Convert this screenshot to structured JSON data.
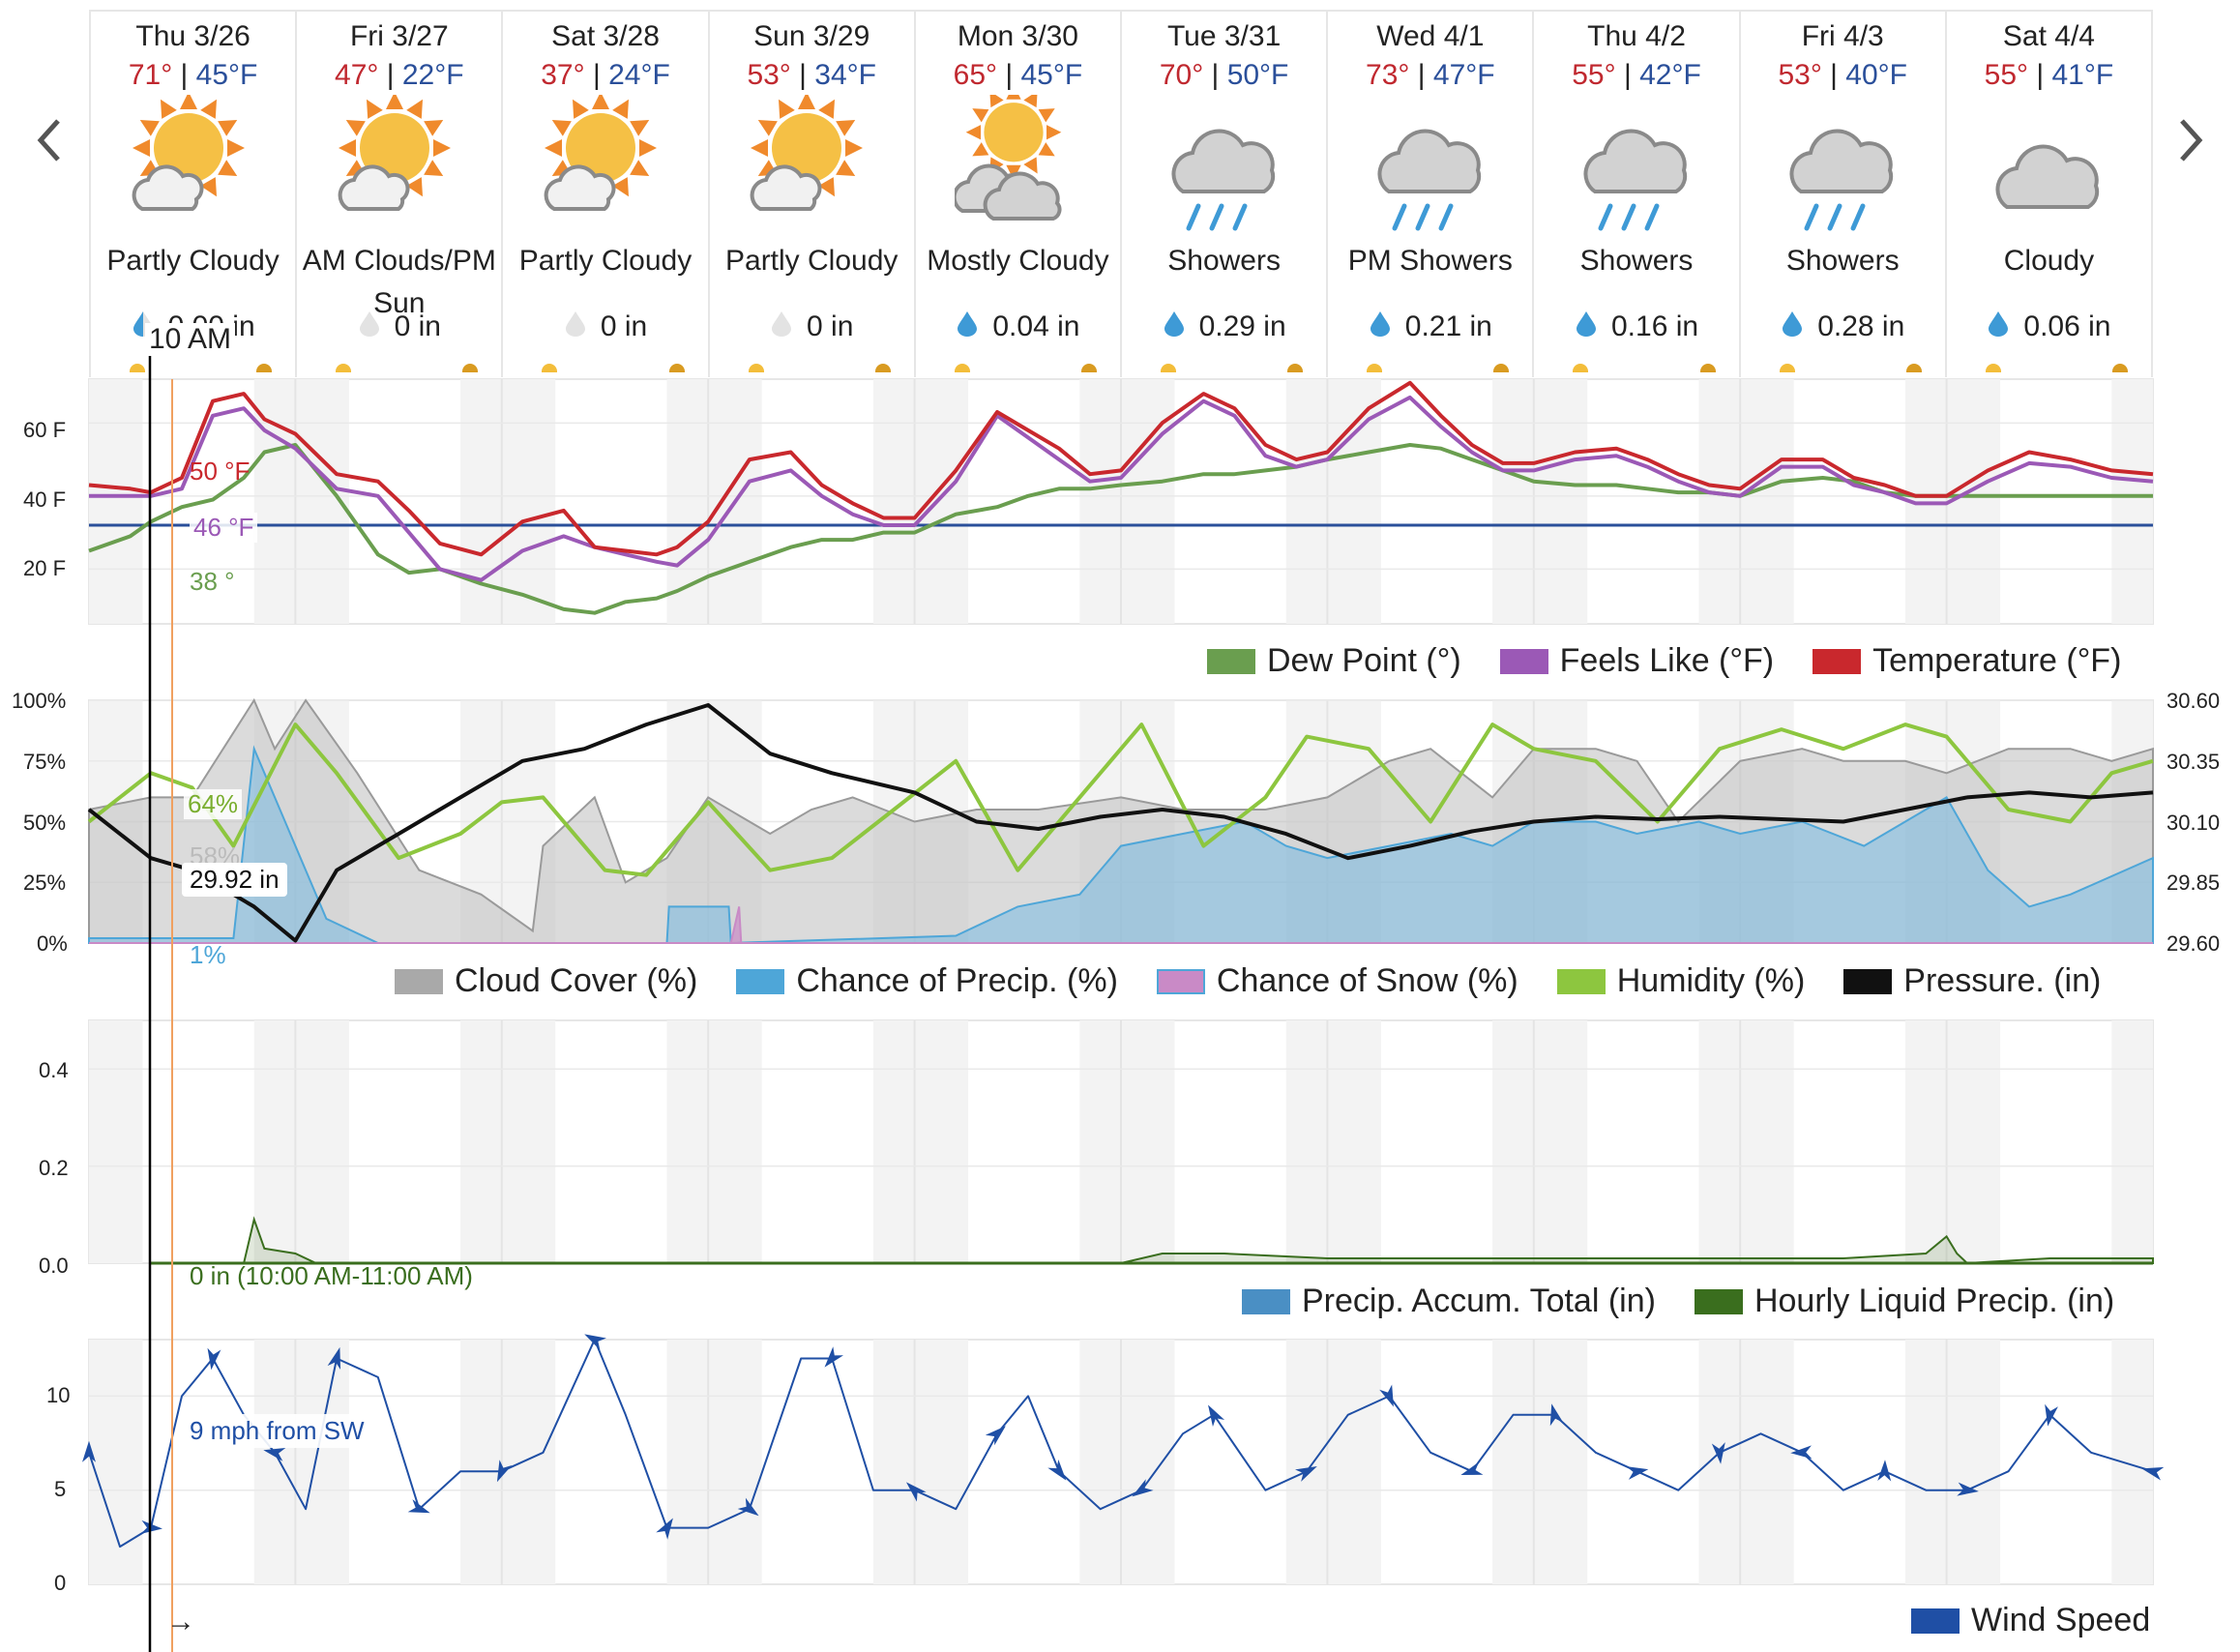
{
  "days": [
    {
      "name": "Thu 3/26",
      "hi": "71°",
      "lo": "45°F",
      "icon": "partly-cloudy-icon",
      "condition": "Partly Cloudy",
      "precip": "0.00 in",
      "drop": "partial"
    },
    {
      "name": "Fri 3/27",
      "hi": "47°",
      "lo": "22°F",
      "icon": "partly-cloudy-icon",
      "condition": "AM Clouds/PM Sun",
      "precip": "0 in",
      "drop": "none"
    },
    {
      "name": "Sat 3/28",
      "hi": "37°",
      "lo": "24°F",
      "icon": "partly-cloudy-icon",
      "condition": "Partly Cloudy",
      "precip": "0 in",
      "drop": "none"
    },
    {
      "name": "Sun 3/29",
      "hi": "53°",
      "lo": "34°F",
      "icon": "partly-cloudy-icon",
      "condition": "Partly Cloudy",
      "precip": "0 in",
      "drop": "none"
    },
    {
      "name": "Mon 3/30",
      "hi": "65°",
      "lo": "45°F",
      "icon": "mostly-cloudy-icon",
      "condition": "Mostly Cloudy",
      "precip": "0.04 in",
      "drop": "full"
    },
    {
      "name": "Tue 3/31",
      "hi": "70°",
      "lo": "50°F",
      "icon": "showers-icon",
      "condition": "Showers",
      "precip": "0.29 in",
      "drop": "full"
    },
    {
      "name": "Wed 4/1",
      "hi": "73°",
      "lo": "47°F",
      "icon": "showers-icon",
      "condition": "PM Showers",
      "precip": "0.21 in",
      "drop": "full"
    },
    {
      "name": "Thu 4/2",
      "hi": "55°",
      "lo": "42°F",
      "icon": "showers-icon",
      "condition": "Showers",
      "precip": "0.16 in",
      "drop": "full"
    },
    {
      "name": "Fri 4/3",
      "hi": "53°",
      "lo": "40°F",
      "icon": "showers-icon",
      "condition": "Showers",
      "precip": "0.28 in",
      "drop": "full"
    },
    {
      "name": "Sat 4/4",
      "hi": "55°",
      "lo": "41°F",
      "icon": "cloudy-icon",
      "condition": "Cloudy",
      "precip": "0.06 in",
      "drop": "full"
    }
  ],
  "cursor": {
    "time_label": "10 AM",
    "temp_label": "50 °F",
    "feels_label": "46 °F",
    "dew_label": "38 °",
    "humidity_label": "64%",
    "cloud_label": "58%",
    "pressure_label": "29.92 in",
    "precip_chance_label": "1%",
    "precip_label": "0 in (10:00 AM-11:00 AM)",
    "wind_label": "9 mph from SW",
    "arrow_glyph": "→"
  },
  "colors": {
    "dew": "#6a9e4f",
    "feels": "#9b59b6",
    "temp": "#c9282d",
    "freeze": "#2a4f9a",
    "cloud": "#a9a9a9",
    "precip": "#4ea6d8",
    "snow": "#c98ac6",
    "humidity": "#8dc63f",
    "pressure": "#111111",
    "accum": "#4a8fc4",
    "hourly": "#3a6e1e",
    "wind": "#1f4fa5"
  },
  "legends": {
    "temp": [
      "Dew Point (°)",
      "Feels Like (°F)",
      "Temperature (°F)"
    ],
    "sky": [
      "Cloud Cover (%)",
      "Chance of Precip. (%)",
      "Chance of Snow (%)",
      "Humidity (%)",
      "Pressure. (in)"
    ],
    "precip": [
      "Precip. Accum. Total (in)",
      "Hourly Liquid Precip. (in)"
    ],
    "wind": [
      "Wind Speed"
    ]
  },
  "axes": {
    "temp_y": [
      "60 F",
      "40 F",
      "20 F"
    ],
    "pct_y": [
      "100%",
      "75%",
      "50%",
      "25%",
      "0%"
    ],
    "pressure_y": [
      "30.60",
      "30.35",
      "30.10",
      "29.85",
      "29.60"
    ],
    "precip_y": [
      "0.4",
      "0.2",
      "0.0"
    ],
    "wind_y": [
      "10",
      "5",
      "0"
    ]
  },
  "chart_data": [
    {
      "type": "line",
      "title": "",
      "x_unit": "day index (0 = Thu 3/26 00:00, 10 days)",
      "ylim": [
        5,
        72
      ],
      "freezing_line": 32,
      "series": [
        {
          "name": "Temperature (°F)",
          "x": [
            0,
            0.2,
            0.3,
            0.45,
            0.6,
            0.75,
            0.85,
            1.0,
            1.2,
            1.4,
            1.55,
            1.7,
            1.9,
            2.1,
            2.3,
            2.45,
            2.6,
            2.75,
            2.85,
            3.0,
            3.2,
            3.4,
            3.55,
            3.7,
            3.85,
            4.0,
            4.2,
            4.4,
            4.55,
            4.7,
            4.85,
            5.0,
            5.2,
            5.4,
            5.55,
            5.7,
            5.85,
            6.0,
            6.2,
            6.4,
            6.55,
            6.7,
            6.85,
            7.0,
            7.2,
            7.4,
            7.55,
            7.7,
            7.85,
            8.0,
            8.2,
            8.4,
            8.55,
            8.7,
            8.85,
            9.0,
            9.2,
            9.4,
            9.6,
            9.8,
            10.0
          ],
          "y": [
            43,
            42,
            41,
            45,
            66,
            68,
            61,
            57,
            46,
            44,
            36,
            27,
            24,
            33,
            36,
            26,
            25,
            24,
            26,
            33,
            50,
            52,
            43,
            38,
            34,
            34,
            47,
            63,
            58,
            53,
            46,
            47,
            60,
            68,
            64,
            54,
            50,
            52,
            64,
            71,
            62,
            54,
            49,
            49,
            52,
            53,
            50,
            46,
            43,
            42,
            50,
            50,
            45,
            43,
            40,
            40,
            47,
            52,
            50,
            47,
            46
          ]
        },
        {
          "name": "Feels Like (°F)",
          "x": [
            0,
            0.2,
            0.3,
            0.45,
            0.6,
            0.75,
            0.85,
            1.0,
            1.2,
            1.4,
            1.55,
            1.7,
            1.9,
            2.1,
            2.3,
            2.45,
            2.6,
            2.75,
            2.85,
            3.0,
            3.2,
            3.4,
            3.55,
            3.7,
            3.85,
            4.0,
            4.2,
            4.4,
            4.55,
            4.7,
            4.85,
            5.0,
            5.2,
            5.4,
            5.55,
            5.7,
            5.85,
            6.0,
            6.2,
            6.4,
            6.55,
            6.7,
            6.85,
            7.0,
            7.2,
            7.4,
            7.55,
            7.7,
            7.85,
            8.0,
            8.2,
            8.4,
            8.55,
            8.7,
            8.85,
            9.0,
            9.2,
            9.4,
            9.6,
            9.8,
            10.0
          ],
          "y": [
            40,
            40,
            40,
            42,
            62,
            64,
            58,
            53,
            42,
            40,
            30,
            20,
            17,
            25,
            29,
            26,
            24,
            22,
            21,
            28,
            44,
            47,
            40,
            35,
            32,
            32,
            44,
            62,
            56,
            50,
            44,
            45,
            57,
            66,
            62,
            51,
            48,
            50,
            61,
            67,
            59,
            52,
            47,
            47,
            50,
            51,
            48,
            44,
            41,
            40,
            48,
            48,
            43,
            41,
            38,
            38,
            44,
            49,
            48,
            45,
            44
          ]
        },
        {
          "name": "Dew Point (°)",
          "x": [
            0,
            0.2,
            0.3,
            0.45,
            0.6,
            0.75,
            0.85,
            1.0,
            1.2,
            1.4,
            1.55,
            1.7,
            1.9,
            2.1,
            2.3,
            2.45,
            2.6,
            2.75,
            2.85,
            3.0,
            3.2,
            3.4,
            3.55,
            3.7,
            3.85,
            4.0,
            4.2,
            4.4,
            4.55,
            4.7,
            4.85,
            5.0,
            5.2,
            5.4,
            5.55,
            5.7,
            5.85,
            6.0,
            6.2,
            6.4,
            6.55,
            6.7,
            6.85,
            7.0,
            7.2,
            7.4,
            7.55,
            7.7,
            7.85,
            8.0,
            8.2,
            8.4,
            8.55,
            8.7,
            8.85,
            9.0,
            9.2,
            9.4,
            9.6,
            9.8,
            10.0
          ],
          "y": [
            25,
            29,
            33,
            37,
            39,
            45,
            52,
            54,
            40,
            24,
            19,
            20,
            16,
            13,
            9,
            8,
            11,
            12,
            14,
            18,
            22,
            26,
            28,
            28,
            30,
            30,
            35,
            37,
            40,
            42,
            42,
            43,
            44,
            46,
            46,
            47,
            48,
            50,
            52,
            54,
            53,
            50,
            47,
            44,
            43,
            43,
            42,
            41,
            41,
            40,
            44,
            45,
            44,
            41,
            40,
            40,
            40,
            40,
            40,
            40,
            40
          ]
        }
      ]
    },
    {
      "type": "area",
      "title": "",
      "x_unit": "day index (0 = Thu 3/26 00:00, 10 days)",
      "ylim": [
        0,
        100
      ],
      "series": [
        {
          "name": "Cloud Cover (%)",
          "x": [
            0,
            0.3,
            0.5,
            0.8,
            0.9,
            1.05,
            1.3,
            1.6,
            1.9,
            2.15,
            2.2,
            2.45,
            2.6,
            2.8,
            3.0,
            3.3,
            3.5,
            3.7,
            4.0,
            4.3,
            4.6,
            5.0,
            5.3,
            5.7,
            6.0,
            6.3,
            6.5,
            6.8,
            7.0,
            7.3,
            7.5,
            7.7,
            8.0,
            8.3,
            8.5,
            8.8,
            9.0,
            9.3,
            9.6,
            9.8,
            10.0
          ],
          "y": [
            55,
            60,
            60,
            100,
            80,
            100,
            70,
            30,
            20,
            5,
            40,
            60,
            25,
            35,
            60,
            45,
            55,
            60,
            50,
            55,
            55,
            60,
            55,
            55,
            60,
            75,
            80,
            60,
            80,
            80,
            75,
            50,
            75,
            80,
            75,
            75,
            70,
            80,
            80,
            75,
            80
          ]
        },
        {
          "name": "Chance of Precip. (%)",
          "x": [
            0,
            0.3,
            0.7,
            0.8,
            0.9,
            1.15,
            1.4,
            2.0,
            2.8,
            2.81,
            3.1,
            3.11,
            4.2,
            4.5,
            4.8,
            5.0,
            5.3,
            5.6,
            5.8,
            6.0,
            6.3,
            6.6,
            6.8,
            7.0,
            7.3,
            7.5,
            7.8,
            8.0,
            8.3,
            8.6,
            8.8,
            9.0,
            9.2,
            9.4,
            9.6,
            10.0
          ],
          "y": [
            2,
            2,
            2,
            80,
            60,
            10,
            0,
            0,
            0,
            15,
            15,
            0,
            3,
            15,
            20,
            40,
            45,
            50,
            40,
            35,
            40,
            45,
            40,
            50,
            50,
            45,
            50,
            45,
            50,
            40,
            50,
            60,
            30,
            15,
            20,
            35
          ]
        },
        {
          "name": "Chance of Snow (%)",
          "x": [
            0,
            3.1,
            3.11,
            3.15,
            3.16,
            10.0
          ],
          "y": [
            0,
            0,
            0,
            15,
            0,
            0
          ]
        },
        {
          "name": "Humidity (%)",
          "x": [
            0,
            0.3,
            0.5,
            0.7,
            1.0,
            1.2,
            1.5,
            1.8,
            2.0,
            2.2,
            2.5,
            2.7,
            3.0,
            3.3,
            3.6,
            3.9,
            4.2,
            4.5,
            4.8,
            5.1,
            5.4,
            5.7,
            5.9,
            6.2,
            6.5,
            6.8,
            7.0,
            7.3,
            7.6,
            7.9,
            8.2,
            8.5,
            8.8,
            9.0,
            9.3,
            9.6,
            9.8,
            10.0
          ],
          "y": [
            50,
            70,
            64,
            40,
            90,
            70,
            35,
            45,
            58,
            60,
            30,
            28,
            58,
            30,
            35,
            55,
            75,
            30,
            60,
            90,
            40,
            60,
            85,
            80,
            50,
            90,
            80,
            75,
            50,
            80,
            88,
            80,
            90,
            85,
            55,
            50,
            70,
            75
          ]
        },
        {
          "name": "Pressure. (in)",
          "ylim": [
            29.6,
            30.6
          ],
          "x": [
            0,
            0.3,
            0.5,
            0.8,
            1.0,
            1.2,
            1.5,
            1.8,
            2.1,
            2.4,
            2.7,
            3.0,
            3.3,
            3.6,
            4.0,
            4.3,
            4.6,
            4.9,
            5.2,
            5.5,
            5.8,
            6.1,
            6.4,
            6.7,
            7.0,
            7.3,
            7.6,
            7.9,
            8.2,
            8.5,
            8.8,
            9.1,
            9.4,
            9.7,
            10.0
          ],
          "y": [
            30.15,
            29.95,
            29.9,
            29.75,
            29.61,
            29.9,
            30.05,
            30.2,
            30.35,
            30.4,
            30.5,
            30.58,
            30.38,
            30.3,
            30.22,
            30.1,
            30.07,
            30.12,
            30.15,
            30.12,
            30.05,
            29.95,
            30.0,
            30.06,
            30.1,
            30.12,
            30.11,
            30.12,
            30.11,
            30.1,
            30.15,
            30.2,
            30.22,
            30.2,
            30.22
          ]
        }
      ]
    },
    {
      "type": "area",
      "title": "",
      "x_unit": "day index (0 = Thu 3/26 00:00, 10 days)",
      "ylim": [
        0,
        0.5
      ],
      "series": [
        {
          "name": "Hourly Liquid Precip. (in)",
          "x": [
            0.3,
            0.75,
            0.8,
            0.85,
            1.0,
            1.1,
            5.0,
            5.2,
            5.5,
            6.0,
            6.5,
            7.0,
            7.5,
            8.0,
            8.5,
            8.9,
            9.0,
            9.05,
            9.1,
            9.5,
            10.0
          ],
          "y": [
            0,
            0,
            0.09,
            0.03,
            0.02,
            0,
            0,
            0.02,
            0.02,
            0.01,
            0.01,
            0.01,
            0.01,
            0.01,
            0.01,
            0.02,
            0.055,
            0.02,
            0,
            0.01,
            0.01
          ]
        }
      ]
    },
    {
      "type": "line",
      "title": "",
      "x_unit": "day index (0 = Thu 3/26 00:00, 10 days)",
      "ylim": [
        0,
        13
      ],
      "series": [
        {
          "name": "Wind Speed",
          "x": [
            0,
            0.15,
            0.3,
            0.45,
            0.6,
            0.75,
            0.9,
            1.05,
            1.2,
            1.4,
            1.6,
            1.8,
            2.0,
            2.2,
            2.45,
            2.6,
            2.8,
            3.0,
            3.2,
            3.45,
            3.6,
            3.8,
            4.0,
            4.2,
            4.4,
            4.55,
            4.7,
            4.9,
            5.1,
            5.3,
            5.45,
            5.7,
            5.9,
            6.1,
            6.3,
            6.5,
            6.7,
            6.9,
            7.1,
            7.3,
            7.5,
            7.7,
            7.9,
            8.1,
            8.3,
            8.5,
            8.7,
            8.9,
            9.1,
            9.3,
            9.5,
            9.7,
            10.0
          ],
          "y": [
            7,
            2,
            3,
            10,
            12,
            9,
            7,
            4,
            12,
            11,
            4,
            6,
            6,
            7,
            13,
            9,
            3,
            3,
            4,
            12,
            12,
            5,
            5,
            4,
            8,
            10,
            6,
            4,
            5,
            8,
            9,
            5,
            6,
            9,
            10,
            7,
            6,
            9,
            9,
            7,
            6,
            5,
            7,
            8,
            7,
            5,
            6,
            5,
            5,
            6,
            9,
            7,
            6
          ]
        }
      ]
    }
  ]
}
